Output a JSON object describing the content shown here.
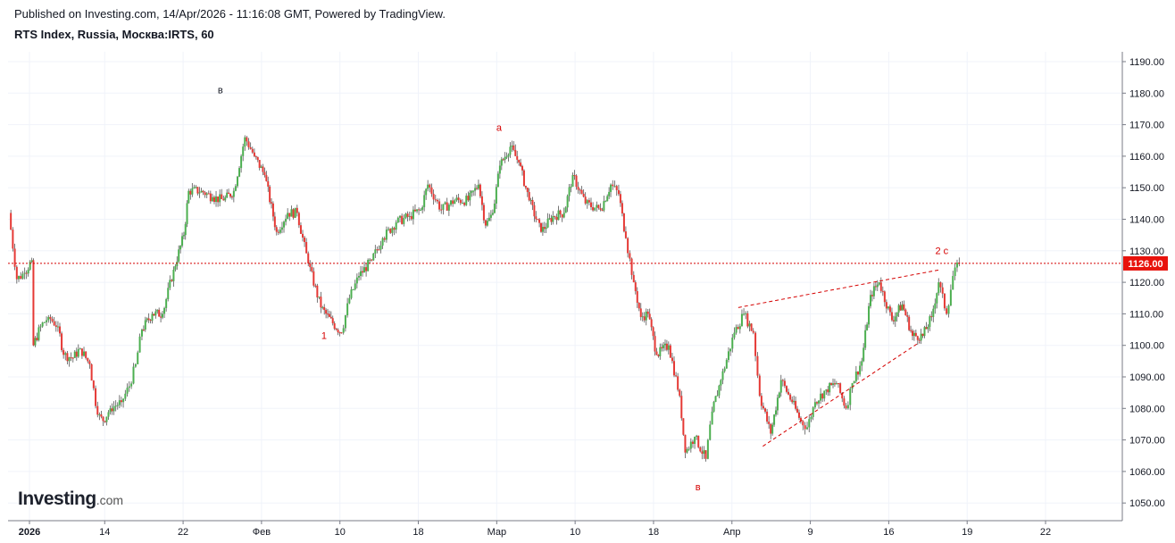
{
  "header": {
    "published": "Published on Investing.com, 14/Apr/2026 - 11:16:08 GMT, Powered by TradingView.",
    "symbol": "RTS Index, Russia, Москва:IRTS, 60"
  },
  "logo": {
    "name": "Investing",
    "suffix": ".com"
  },
  "colors": {
    "up": "#26a69a",
    "down": "#ef5350",
    "up_wick": "#4caf50",
    "down_wick": "#e53935",
    "annotation": "#d50000",
    "last_price_bg": "#e8120c"
  },
  "chart_data": {
    "type": "candlestick",
    "timeframe": "60",
    "y_axis_ticks": [
      "1190.00",
      "1180.00",
      "1170.00",
      "1160.00",
      "1150.00",
      "1140.00",
      "1130.00",
      "1120.00",
      "1110.00",
      "1100.00",
      "1090.00",
      "1080.00",
      "1070.00",
      "1060.00",
      "1050.00"
    ],
    "ylim": [
      1045.5,
      1193
    ],
    "x_axis_ticks": [
      {
        "label": "2026",
        "bold": true,
        "day": 0
      },
      {
        "label": "14",
        "day": 9.5
      },
      {
        "label": "22",
        "day": 19.4
      },
      {
        "label": "Фев",
        "day": 29.3
      },
      {
        "label": "10",
        "day": 39.2
      },
      {
        "label": "18",
        "day": 49.1
      },
      {
        "label": "Мар",
        "day": 59
      },
      {
        "label": "10",
        "day": 68.9
      },
      {
        "label": "18",
        "day": 78.8
      },
      {
        "label": "Апр",
        "day": 88.7
      },
      {
        "label": "9",
        "day": 98.6
      },
      {
        "label": "16",
        "day": 108.5
      },
      {
        "label": "19",
        "day": 118.4
      },
      {
        "label": "22",
        "day": 128.3
      }
    ],
    "close_path": [
      [
        -2.6,
        1142
      ],
      [
        -1.6,
        1121
      ],
      [
        -0.6,
        1123
      ],
      [
        0.3,
        1127
      ],
      [
        0.5,
        1100
      ],
      [
        1.4,
        1106
      ],
      [
        2.4,
        1109
      ],
      [
        3.6,
        1106
      ],
      [
        4.3,
        1097
      ],
      [
        5.5,
        1096
      ],
      [
        6.4,
        1099
      ],
      [
        7.6,
        1094
      ],
      [
        8.6,
        1078
      ],
      [
        9.3,
        1076
      ],
      [
        10.2,
        1080
      ],
      [
        11.6,
        1082
      ],
      [
        12.6,
        1087
      ],
      [
        13.4,
        1094
      ],
      [
        14.2,
        1105
      ],
      [
        15.5,
        1110
      ],
      [
        16.8,
        1110
      ],
      [
        18.2,
        1124
      ],
      [
        19.5,
        1135
      ],
      [
        20.1,
        1149
      ],
      [
        21.7,
        1149
      ],
      [
        23.1,
        1147
      ],
      [
        24.5,
        1146
      ],
      [
        25.8,
        1149
      ],
      [
        27.2,
        1166
      ],
      [
        28.4,
        1160
      ],
      [
        29.7,
        1154
      ],
      [
        31.2,
        1136
      ],
      [
        32.6,
        1142
      ],
      [
        33.8,
        1142
      ],
      [
        35.2,
        1126
      ],
      [
        36.8,
        1112
      ],
      [
        38.3,
        1107
      ],
      [
        39.4,
        1104
      ],
      [
        40.4,
        1115
      ],
      [
        41.6,
        1122
      ],
      [
        43.2,
        1127
      ],
      [
        44.6,
        1134
      ],
      [
        46.3,
        1139
      ],
      [
        48.0,
        1141
      ],
      [
        49.4,
        1143
      ],
      [
        50.3,
        1151
      ],
      [
        52.0,
        1143
      ],
      [
        53.7,
        1146
      ],
      [
        55.4,
        1146
      ],
      [
        56.7,
        1151
      ],
      [
        57.6,
        1138
      ],
      [
        58.5,
        1142
      ],
      [
        59.4,
        1157
      ],
      [
        60.7,
        1163
      ],
      [
        61.8,
        1158
      ],
      [
        63.1,
        1146
      ],
      [
        64.6,
        1136
      ],
      [
        66.1,
        1141
      ],
      [
        67.5,
        1142
      ],
      [
        68.6,
        1154
      ],
      [
        70.2,
        1145
      ],
      [
        72.1,
        1143
      ],
      [
        73.4,
        1151
      ],
      [
        74.4,
        1148
      ],
      [
        75.3,
        1134
      ],
      [
        76.3,
        1120
      ],
      [
        77.2,
        1109
      ],
      [
        78.1,
        1110
      ],
      [
        79.2,
        1097
      ],
      [
        80.7,
        1100
      ],
      [
        82.1,
        1084
      ],
      [
        82.8,
        1066
      ],
      [
        84.0,
        1071
      ],
      [
        85.4,
        1064
      ],
      [
        86.2,
        1079
      ],
      [
        87.3,
        1089
      ],
      [
        89.0,
        1104
      ],
      [
        90.2,
        1110
      ],
      [
        91.4,
        1104
      ],
      [
        92.2,
        1084
      ],
      [
        93.6,
        1072
      ],
      [
        94.9,
        1089
      ],
      [
        96.3,
        1082
      ],
      [
        97.4,
        1076
      ],
      [
        98.2,
        1074
      ],
      [
        99.2,
        1082
      ],
      [
        100.6,
        1086
      ],
      [
        101.9,
        1088
      ],
      [
        103.1,
        1080
      ],
      [
        103.9,
        1088
      ],
      [
        105.1,
        1095
      ],
      [
        106.2,
        1116
      ],
      [
        107.3,
        1120
      ],
      [
        108.9,
        1108
      ],
      [
        110.2,
        1113
      ],
      [
        111.5,
        1103
      ],
      [
        112.8,
        1103
      ],
      [
        113.9,
        1109
      ],
      [
        114.8,
        1120
      ],
      [
        115.8,
        1110
      ],
      [
        116.6,
        1122
      ],
      [
        117.4,
        1126
      ]
    ],
    "elliott_labels": [
      {
        "text": "в",
        "day": 24.1,
        "price": 1180
      },
      {
        "text": "a",
        "day": 59.3,
        "price": 1168
      },
      {
        "text": "1",
        "day": 37.2,
        "price": 1102
      },
      {
        "text": "в",
        "day": 84.4,
        "price": 1054
      },
      {
        "text": "2 c",
        "day": 115.2,
        "price": 1129
      }
    ],
    "trendlines": [
      {
        "from": [
          89.5,
          1112
        ],
        "to": [
          115.0,
          1124
        ]
      },
      {
        "from": [
          92.6,
          1068
        ],
        "to": [
          112.4,
          1101
        ]
      }
    ],
    "last_price": {
      "label": "1126.00",
      "value": 1126
    }
  }
}
